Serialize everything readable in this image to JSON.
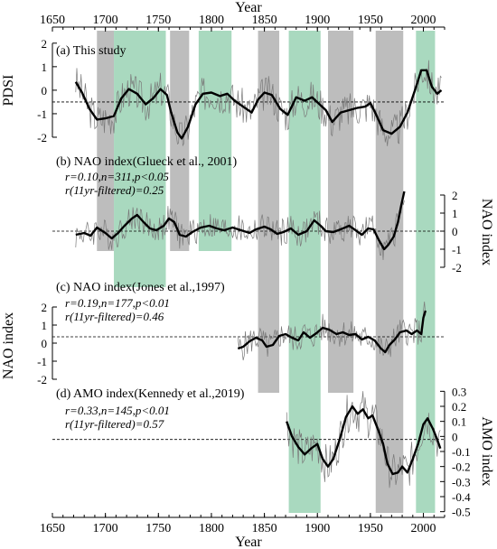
{
  "chart_data": {
    "type": "line",
    "x_axis": {
      "label": "Year",
      "range": [
        1650,
        2020
      ],
      "ticks": [
        1650,
        1700,
        1750,
        1800,
        1850,
        1900,
        1950,
        2000
      ],
      "tick_labels": [
        "1650",
        "1700",
        "1750",
        "1800",
        "1850",
        "1900",
        "1950",
        "2000"
      ]
    },
    "shaded_periods": [
      {
        "color": "#bdbdbd",
        "start": 1692,
        "end": 1708
      },
      {
        "color": "#a9d9bf",
        "start": 1708,
        "end": 1757
      },
      {
        "color": "#bdbdbd",
        "start": 1761,
        "end": 1779
      },
      {
        "color": "#a9d9bf",
        "start": 1788,
        "end": 1819
      },
      {
        "color": "#bdbdbd",
        "start": 1844,
        "end": 1864
      },
      {
        "color": "#a9d9bf",
        "start": 1873,
        "end": 1903
      },
      {
        "color": "#bdbdbd",
        "start": 1910,
        "end": 1934
      },
      {
        "color": "#bdbdbd",
        "start": 1955,
        "end": 1981
      },
      {
        "color": "#a9d9bf",
        "start": 1993,
        "end": 2011
      }
    ],
    "panels": [
      {
        "title": "(a) This study",
        "ylabel": "PDSI",
        "axis_side": "left",
        "ylim": [
          -2.5,
          2.3
        ],
        "y_ticks": [
          2,
          1,
          0,
          -1,
          -2
        ],
        "y_tick_labels": [
          "2",
          "1",
          "0",
          "-1",
          "-2"
        ],
        "dashed_ref": -0.5,
        "stats": [],
        "x_start": 1672,
        "x_end": 2017,
        "smooth": [
          [
            1672,
            0.35
          ],
          [
            1678,
            -0.1
          ],
          [
            1685,
            -0.8
          ],
          [
            1692,
            -1.25
          ],
          [
            1700,
            -1.2
          ],
          [
            1708,
            -1.1
          ],
          [
            1715,
            -0.35
          ],
          [
            1722,
            0.05
          ],
          [
            1730,
            -0.15
          ],
          [
            1738,
            -0.6
          ],
          [
            1745,
            -0.35
          ],
          [
            1752,
            0.05
          ],
          [
            1758,
            -0.2
          ],
          [
            1762,
            -0.95
          ],
          [
            1768,
            -1.8
          ],
          [
            1772,
            -2.05
          ],
          [
            1778,
            -1.55
          ],
          [
            1785,
            -0.6
          ],
          [
            1792,
            -0.15
          ],
          [
            1800,
            -0.1
          ],
          [
            1808,
            -0.25
          ],
          [
            1815,
            -0.15
          ],
          [
            1822,
            -0.45
          ],
          [
            1830,
            -0.7
          ],
          [
            1838,
            -0.95
          ],
          [
            1844,
            -0.4
          ],
          [
            1850,
            -0.1
          ],
          [
            1857,
            -0.2
          ],
          [
            1865,
            -0.8
          ],
          [
            1872,
            -1.05
          ],
          [
            1880,
            -0.3
          ],
          [
            1888,
            -0.45
          ],
          [
            1895,
            -0.3
          ],
          [
            1902,
            -0.6
          ],
          [
            1908,
            -0.85
          ],
          [
            1914,
            -1.35
          ],
          [
            1922,
            -0.95
          ],
          [
            1930,
            -0.85
          ],
          [
            1938,
            -0.75
          ],
          [
            1945,
            -0.7
          ],
          [
            1950,
            -0.55
          ],
          [
            1955,
            -1.0
          ],
          [
            1962,
            -1.7
          ],
          [
            1970,
            -1.85
          ],
          [
            1978,
            -1.55
          ],
          [
            1985,
            -0.95
          ],
          [
            1992,
            0.0
          ],
          [
            1998,
            0.85
          ],
          [
            2003,
            0.85
          ],
          [
            2008,
            0.15
          ],
          [
            2013,
            -0.15
          ],
          [
            2017,
            0.0
          ]
        ]
      },
      {
        "title": "(b) NAO index(Glueck et al., 2001)",
        "ylabel": "NAO index",
        "axis_side": "right",
        "ylim": [
          -2.6,
          2.3
        ],
        "y_ticks": [
          2,
          1,
          0,
          -1,
          -2
        ],
        "y_tick_labels": [
          "2",
          "1",
          "0",
          "-1",
          "-2"
        ],
        "dashed_ref": 0,
        "stats": [
          "r=0.10,n=311,p<0.05",
          "r(11yr-filtered)=0.25"
        ],
        "x_start": 1672,
        "x_end": 1982,
        "smooth": [
          [
            1672,
            -0.2
          ],
          [
            1680,
            -0.1
          ],
          [
            1686,
            -0.25
          ],
          [
            1692,
            0.2
          ],
          [
            1700,
            -0.1
          ],
          [
            1706,
            -0.4
          ],
          [
            1712,
            -0.1
          ],
          [
            1718,
            0.3
          ],
          [
            1725,
            0.7
          ],
          [
            1730,
            0.9
          ],
          [
            1736,
            0.5
          ],
          [
            1742,
            0.15
          ],
          [
            1748,
            0.05
          ],
          [
            1755,
            0.3
          ],
          [
            1760,
            0.7
          ],
          [
            1765,
            0.5
          ],
          [
            1770,
            -0.2
          ],
          [
            1776,
            -0.3
          ],
          [
            1782,
            -0.05
          ],
          [
            1790,
            0.2
          ],
          [
            1798,
            0.3
          ],
          [
            1805,
            0.15
          ],
          [
            1812,
            0.05
          ],
          [
            1820,
            0.2
          ],
          [
            1828,
            0.05
          ],
          [
            1836,
            -0.1
          ],
          [
            1842,
            0.1
          ],
          [
            1850,
            0.25
          ],
          [
            1856,
            0.1
          ],
          [
            1862,
            -0.15
          ],
          [
            1868,
            -0.05
          ],
          [
            1875,
            0.15
          ],
          [
            1882,
            -0.2
          ],
          [
            1890,
            0.0
          ],
          [
            1897,
            0.6
          ],
          [
            1903,
            0.3
          ],
          [
            1908,
            0.0
          ],
          [
            1915,
            -0.05
          ],
          [
            1922,
            0.1
          ],
          [
            1930,
            0.3
          ],
          [
            1936,
            0.05
          ],
          [
            1942,
            -0.2
          ],
          [
            1948,
            0.15
          ],
          [
            1953,
            0.1
          ],
          [
            1958,
            -0.5
          ],
          [
            1963,
            -1.0
          ],
          [
            1967,
            -0.75
          ],
          [
            1972,
            -0.3
          ],
          [
            1976,
            0.5
          ],
          [
            1979,
            1.4
          ],
          [
            1982,
            2.2
          ]
        ]
      },
      {
        "title": "(c) NAO index(Jones et al.,1997)",
        "ylabel": "NAO index",
        "axis_side": "left",
        "ylim": [
          -2.6,
          2.3
        ],
        "y_ticks": [
          2,
          1,
          0,
          -1,
          -2
        ],
        "y_tick_labels": [
          "2",
          "1",
          "0",
          "-1",
          "-2"
        ],
        "dashed_ref": 0.35,
        "stats": [
          "r=0.19,n=177,p<0.01",
          "r(11yr-filtered)=0.46"
        ],
        "x_start": 1825,
        "x_end": 2002,
        "smooth": [
          [
            1825,
            -0.3
          ],
          [
            1830,
            -0.2
          ],
          [
            1836,
            0.1
          ],
          [
            1842,
            0.3
          ],
          [
            1848,
            0.15
          ],
          [
            1852,
            -0.2
          ],
          [
            1858,
            -0.1
          ],
          [
            1864,
            0.4
          ],
          [
            1870,
            0.5
          ],
          [
            1876,
            0.3
          ],
          [
            1882,
            0.15
          ],
          [
            1887,
            0.6
          ],
          [
            1893,
            0.3
          ],
          [
            1899,
            0.55
          ],
          [
            1905,
            0.85
          ],
          [
            1911,
            0.75
          ],
          [
            1918,
            0.5
          ],
          [
            1924,
            0.6
          ],
          [
            1930,
            0.45
          ],
          [
            1936,
            0.5
          ],
          [
            1942,
            0.2
          ],
          [
            1948,
            0.35
          ],
          [
            1954,
            0.15
          ],
          [
            1960,
            -0.3
          ],
          [
            1964,
            -0.5
          ],
          [
            1968,
            -0.1
          ],
          [
            1973,
            0.2
          ],
          [
            1978,
            0.6
          ],
          [
            1984,
            0.7
          ],
          [
            1989,
            0.5
          ],
          [
            1994,
            0.7
          ],
          [
            1998,
            0.5
          ],
          [
            2000,
            1.4
          ],
          [
            2002,
            1.8
          ]
        ]
      },
      {
        "title": "(d) AMO index(Kennedy et al.,2019)",
        "ylabel": "AMO index",
        "axis_side": "right",
        "ylim": [
          -0.52,
          0.32
        ],
        "y_ticks": [
          0.3,
          0.2,
          0.1,
          0,
          -0.1,
          -0.2,
          -0.3,
          -0.4,
          -0.5
        ],
        "y_tick_labels": [
          "0.3",
          "0.2",
          "0.1",
          "0",
          "-0.1",
          "-0.2",
          "-0.3",
          "-0.4",
          "-0.5"
        ],
        "dashed_ref": -0.02,
        "stats": [
          "r=0.33,n=145,p<0.01",
          "r(11yr-filtered)=0.57"
        ],
        "x_start": 1871,
        "x_end": 2016,
        "smooth": [
          [
            1871,
            0.1
          ],
          [
            1876,
            0.0
          ],
          [
            1882,
            -0.07
          ],
          [
            1888,
            -0.12
          ],
          [
            1894,
            -0.08
          ],
          [
            1900,
            -0.05
          ],
          [
            1905,
            -0.15
          ],
          [
            1910,
            -0.2
          ],
          [
            1915,
            -0.15
          ],
          [
            1921,
            -0.02
          ],
          [
            1927,
            0.13
          ],
          [
            1933,
            0.2
          ],
          [
            1938,
            0.15
          ],
          [
            1943,
            0.18
          ],
          [
            1948,
            0.12
          ],
          [
            1952,
            0.14
          ],
          [
            1957,
            0.05
          ],
          [
            1962,
            -0.05
          ],
          [
            1966,
            -0.18
          ],
          [
            1971,
            -0.25
          ],
          [
            1976,
            -0.24
          ],
          [
            1980,
            -0.2
          ],
          [
            1985,
            -0.24
          ],
          [
            1990,
            -0.15
          ],
          [
            1995,
            -0.05
          ],
          [
            2000,
            0.08
          ],
          [
            2004,
            0.12
          ],
          [
            2009,
            0.05
          ],
          [
            2013,
            -0.02
          ],
          [
            2016,
            -0.08
          ]
        ]
      }
    ]
  }
}
